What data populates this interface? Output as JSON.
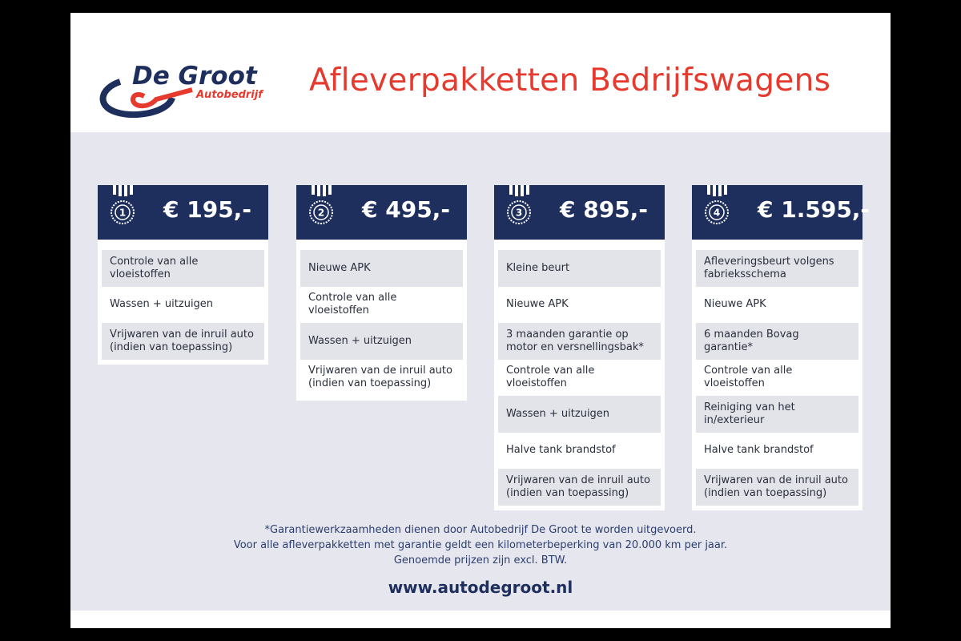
{
  "logo": {
    "name": "De Groot",
    "sub": "Autobedrijf"
  },
  "title": "Afleverpakketten Bedrijfswagens",
  "colors": {
    "navy": "#1e2f5e",
    "red": "#e63a2f",
    "panel": "#e6e7ee"
  },
  "packages": [
    {
      "number": "1",
      "price": "€ 195,-",
      "items": [
        "Controle van alle vloeistoffen",
        "Wassen + uitzuigen",
        "Vrijwaren van de inruil auto (indien van toepassing)"
      ]
    },
    {
      "number": "2",
      "price": "€ 495,-",
      "items": [
        "Nieuwe APK",
        "Controle van alle vloeistoffen",
        "Wassen + uitzuigen",
        "Vrijwaren van de inruil auto (indien van toepassing)"
      ]
    },
    {
      "number": "3",
      "price": "€ 895,-",
      "items": [
        "Kleine beurt",
        "Nieuwe APK",
        "3 maanden garantie op motor en versnellingsbak*",
        "Controle van alle vloeistoffen",
        "Wassen + uitzuigen",
        "Halve tank brandstof",
        "Vrijwaren van de inruil auto (indien van toepassing)"
      ]
    },
    {
      "number": "4",
      "price": "€  1.595,-",
      "items": [
        "Afleveringsbeurt volgens fabrieksschema",
        "Nieuwe APK",
        "6 maanden Bovag garantie*",
        "Controle van alle vloeistoffen",
        "Reiniging van het in/exterieur",
        "Halve tank brandstof",
        "Vrijwaren van de inruil auto (indien van toepassing)"
      ]
    }
  ],
  "notes": [
    "*Garantiewerkzaamheden dienen door Autobedrijf De Groot te worden uitgevoerd.",
    "Voor alle afleverpakketten met garantie geldt een kilometerbeperking van 20.000 km per jaar.",
    "Genoemde prijzen zijn excl. BTW."
  ],
  "url": "www.autodegroot.nl"
}
